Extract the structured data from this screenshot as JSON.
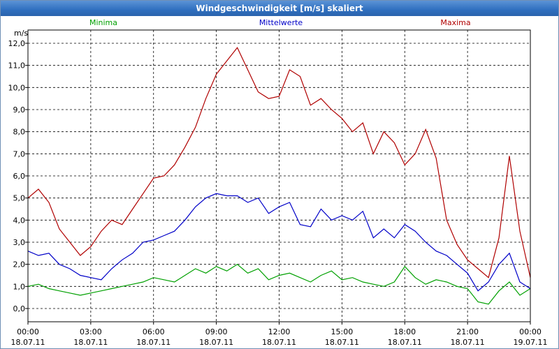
{
  "window": {
    "title": "Windgeschwindigkeit [m/s] skaliert"
  },
  "chart_data": {
    "type": "line",
    "title": "Windgeschwindigkeit [m/s] skaliert",
    "ylabel": "m/s",
    "xlabel": "",
    "ylim": [
      -0.6,
      12.6
    ],
    "yticks": [
      "12,0",
      "11,0",
      "10,0",
      "9,0",
      "8,0",
      "7,0",
      "6,0",
      "5,0",
      "4,0",
      "3,0",
      "2,0",
      "1,0",
      "0,0"
    ],
    "ytick_values": [
      12,
      11,
      10,
      9,
      8,
      7,
      6,
      5,
      4,
      3,
      2,
      1,
      0
    ],
    "xlim": [
      0,
      24
    ],
    "xticks": [
      {
        "hours": 0,
        "time": "00:00",
        "date": "18.07.11"
      },
      {
        "hours": 3,
        "time": "03:00",
        "date": "18.07.11"
      },
      {
        "hours": 6,
        "time": "06:00",
        "date": "18.07.11"
      },
      {
        "hours": 9,
        "time": "09:00",
        "date": "18.07.11"
      },
      {
        "hours": 12,
        "time": "12:00",
        "date": "18.07.11"
      },
      {
        "hours": 15,
        "time": "15:00",
        "date": "18.07.11"
      },
      {
        "hours": 18,
        "time": "18:00",
        "date": "18.07.11"
      },
      {
        "hours": 21,
        "time": "21:00",
        "date": "18.07.11"
      },
      {
        "hours": 24,
        "time": "00:00",
        "date": "19.07.11"
      }
    ],
    "grid": true,
    "legend_position": "top",
    "x": [
      0,
      0.5,
      1,
      1.5,
      2,
      2.5,
      3,
      3.5,
      4,
      4.5,
      5,
      5.5,
      6,
      6.5,
      7,
      7.5,
      8,
      8.5,
      9,
      9.5,
      10,
      10.5,
      11,
      11.5,
      12,
      12.5,
      13,
      13.5,
      14,
      14.5,
      15,
      15.5,
      16,
      16.5,
      17,
      17.5,
      18,
      18.5,
      19,
      19.5,
      20,
      20.5,
      21,
      21.5,
      22,
      22.5,
      23,
      23.5,
      24
    ],
    "series": [
      {
        "name": "Minima",
        "color": "#00a000",
        "values": [
          1.0,
          1.1,
          0.9,
          0.8,
          0.7,
          0.6,
          0.7,
          0.8,
          0.9,
          1.0,
          1.1,
          1.2,
          1.4,
          1.3,
          1.2,
          1.5,
          1.8,
          1.6,
          1.9,
          1.7,
          2.0,
          1.6,
          1.8,
          1.3,
          1.5,
          1.6,
          1.4,
          1.2,
          1.5,
          1.7,
          1.3,
          1.4,
          1.2,
          1.1,
          1.0,
          1.2,
          1.9,
          1.4,
          1.1,
          1.3,
          1.2,
          1.0,
          0.9,
          0.3,
          0.2,
          0.8,
          1.2,
          0.6,
          0.9
        ]
      },
      {
        "name": "Mittelwerte",
        "color": "#0000c8",
        "values": [
          2.6,
          2.4,
          2.5,
          2.0,
          1.8,
          1.5,
          1.4,
          1.3,
          1.8,
          2.2,
          2.5,
          3.0,
          3.1,
          3.3,
          3.5,
          4.0,
          4.6,
          5.0,
          5.2,
          5.1,
          5.1,
          4.8,
          5.0,
          4.3,
          4.6,
          4.8,
          3.8,
          3.7,
          4.5,
          4.0,
          4.2,
          4.0,
          4.4,
          3.2,
          3.6,
          3.2,
          3.8,
          3.5,
          3.0,
          2.6,
          2.4,
          2.0,
          1.6,
          0.8,
          1.2,
          2.0,
          2.5,
          1.2,
          0.9
        ]
      },
      {
        "name": "Maxima",
        "color": "#b00000",
        "values": [
          5.0,
          5.4,
          4.8,
          3.6,
          3.0,
          2.4,
          2.8,
          3.5,
          4.0,
          3.8,
          4.5,
          5.2,
          5.9,
          6.0,
          6.5,
          7.3,
          8.2,
          9.5,
          10.6,
          11.2,
          11.8,
          10.8,
          9.8,
          9.5,
          9.6,
          10.8,
          10.5,
          9.2,
          9.5,
          9.0,
          8.6,
          8.0,
          8.4,
          7.0,
          8.0,
          7.5,
          6.5,
          7.0,
          8.1,
          6.8,
          4.0,
          2.9,
          2.2,
          1.8,
          1.4,
          3.2,
          6.9,
          3.5,
          1.4
        ]
      }
    ]
  }
}
